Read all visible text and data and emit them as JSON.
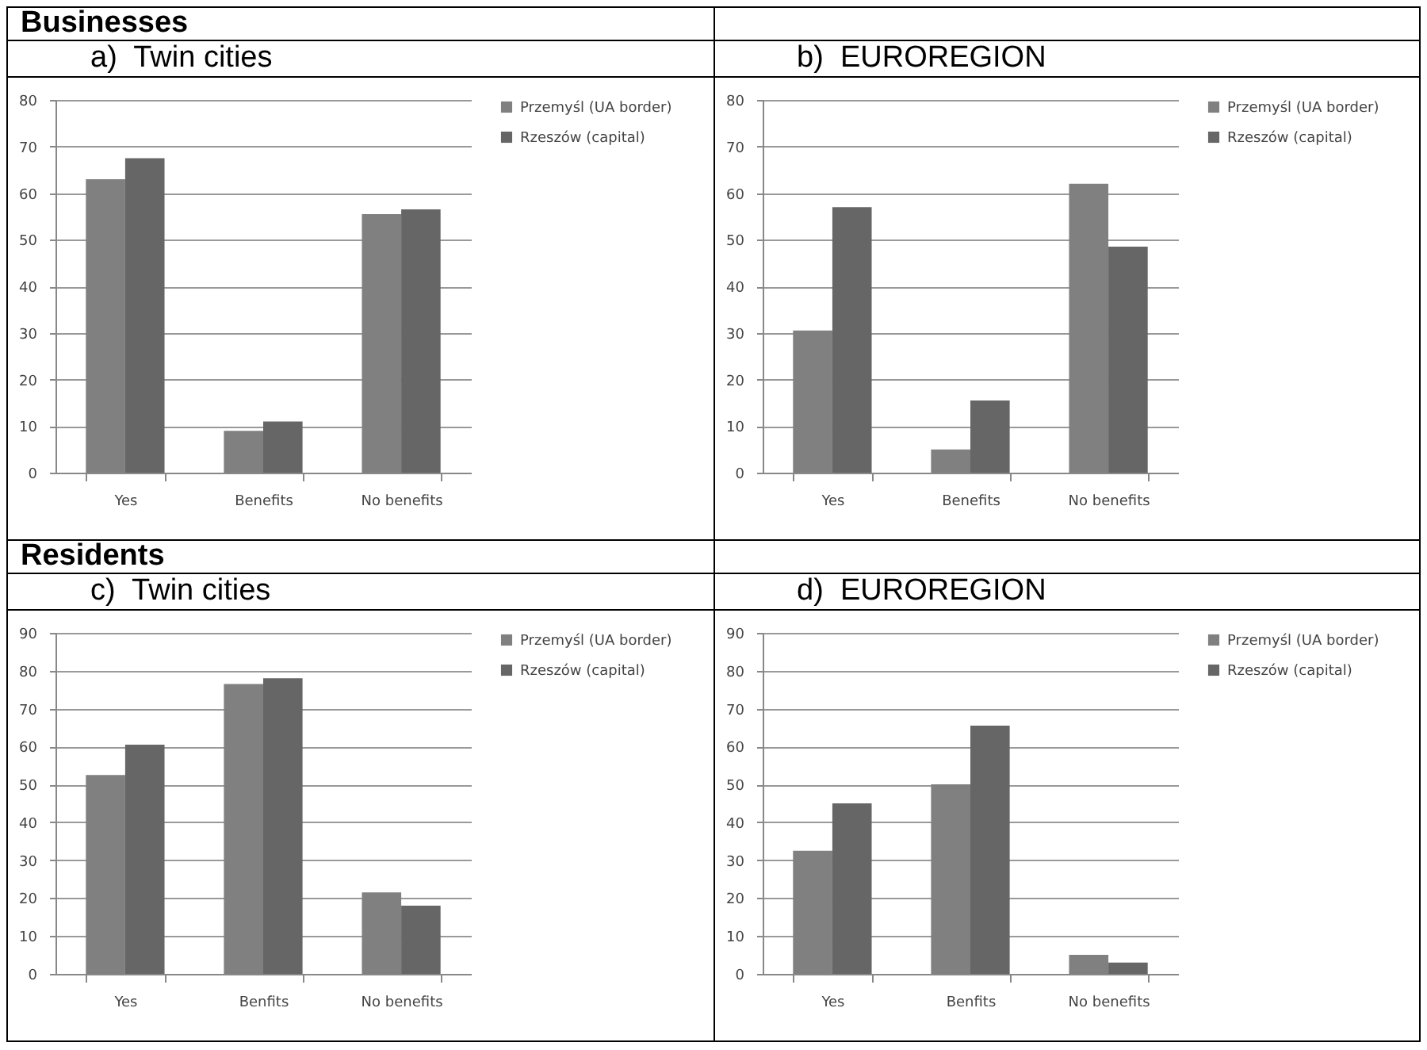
{
  "chart_data": [
    {
      "type": "bar",
      "title": "a)  Twin cities",
      "annotations": [
        "Businesses"
      ],
      "categories": [
        "Yes",
        "Benefits",
        "No benefits"
      ],
      "series": [
        {
          "name": "Przemyśl (UA border)",
          "color": "#808080",
          "values": [
            63,
            9,
            55.5
          ]
        },
        {
          "name": "Rzeszów (capital)",
          "color": "#666666",
          "values": [
            67.5,
            11,
            56.5
          ]
        }
      ],
      "ylim": [
        0,
        80
      ],
      "yticks": [
        0,
        10,
        20,
        30,
        40,
        50,
        60,
        70,
        80
      ],
      "grid": "y",
      "legend": "right"
    },
    {
      "type": "bar",
      "title": "b)  EUROREGION",
      "categories": [
        "Yes",
        "Benefits",
        "No benefits"
      ],
      "series": [
        {
          "name": "Przemyśl (UA border)",
          "color": "#808080",
          "values": [
            30.5,
            5,
            62
          ]
        },
        {
          "name": "Rzeszów (capital)",
          "color": "#666666",
          "values": [
            57,
            15.5,
            48.5
          ]
        }
      ],
      "ylim": [
        0,
        80
      ],
      "yticks": [
        0,
        10,
        20,
        30,
        40,
        50,
        60,
        70,
        80
      ],
      "grid": "y",
      "legend": "right"
    },
    {
      "type": "bar",
      "title": "c)  Twin cities",
      "annotations": [
        "Residents"
      ],
      "categories": [
        "Yes",
        "Benfits",
        "No benefits"
      ],
      "series": [
        {
          "name": "Przemyśl (UA border)",
          "color": "#808080",
          "values": [
            52.5,
            76.5,
            21.5
          ]
        },
        {
          "name": "Rzeszów (capital)",
          "color": "#666666",
          "values": [
            60.5,
            78,
            18
          ]
        }
      ],
      "ylim": [
        0,
        90
      ],
      "yticks": [
        0,
        10,
        20,
        30,
        40,
        50,
        60,
        70,
        80,
        90
      ],
      "grid": "y",
      "legend": "right"
    },
    {
      "type": "bar",
      "title": "d)  EUROREGION",
      "categories": [
        "Yes",
        "Benfits",
        "No benefits"
      ],
      "series": [
        {
          "name": "Przemyśl (UA border)",
          "color": "#808080",
          "values": [
            32.5,
            50,
            5
          ]
        },
        {
          "name": "Rzeszów (capital)",
          "color": "#666666",
          "values": [
            45,
            65.5,
            3
          ]
        }
      ],
      "ylim": [
        0,
        90
      ],
      "yticks": [
        0,
        10,
        20,
        30,
        40,
        50,
        60,
        70,
        80,
        90
      ],
      "grid": "y",
      "legend": "right"
    }
  ]
}
